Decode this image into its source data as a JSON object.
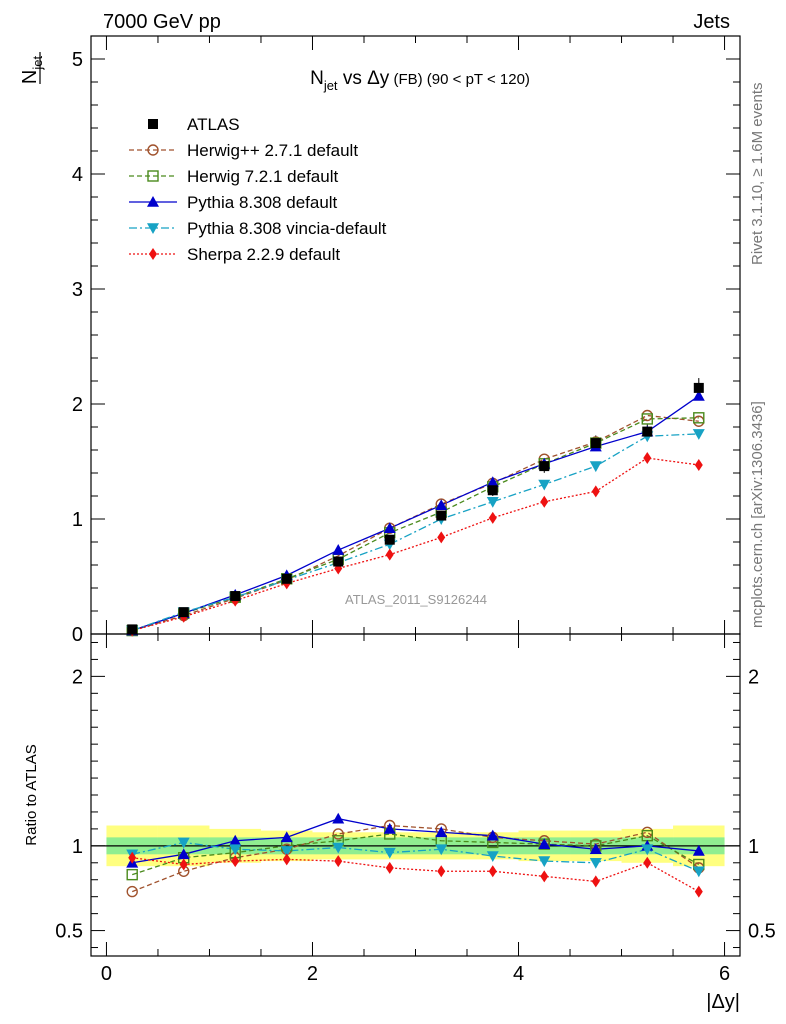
{
  "header": {
    "left": "7000 GeV pp",
    "right": "Jets"
  },
  "side_labels": {
    "rivet": "Rivet 3.1.10, ≥ 1.6M events",
    "mcplots": "mcplots.cern.ch [arXiv:1306.3436]"
  },
  "chart_data": {
    "type": "line",
    "title": {
      "main": "N",
      "main_sub": "jet",
      "mid": " vs Δy",
      "tag": " (FB) (90 < pT < 120)"
    },
    "ylabel": {
      "main": "N",
      "sub": "jet"
    },
    "xlabel": "|Δy|",
    "ratio_ylabel": "Ratio to ATLAS",
    "watermark": "ATLAS_2011_S9126244",
    "xlim": [
      -0.15,
      6.15
    ],
    "ylim": [
      0,
      5.2
    ],
    "ratio_ylim": [
      0.35,
      2.25
    ],
    "xticks": [
      0,
      2,
      4,
      6
    ],
    "xtick_labels": [
      "0",
      "2",
      "4",
      "6"
    ],
    "yticks": [
      0,
      1,
      2,
      3,
      4,
      5
    ],
    "ytick_labels": [
      "0",
      "1",
      "2",
      "3",
      "4",
      "5"
    ],
    "ratio_yticks": [
      0.5,
      1,
      2
    ],
    "ratio_ytick_labels": [
      "0.5",
      "1",
      "2"
    ],
    "x": [
      0.25,
      0.75,
      1.25,
      1.75,
      2.25,
      2.75,
      3.25,
      3.75,
      4.25,
      4.75,
      5.25,
      5.75
    ],
    "data": {
      "name": "ATLAS",
      "values": [
        0.04,
        0.19,
        0.33,
        0.48,
        0.63,
        0.82,
        1.03,
        1.25,
        1.46,
        1.66,
        1.76,
        2.14
      ],
      "band_inner": [
        0.05,
        0.05,
        0.05,
        0.05,
        0.05,
        0.05,
        0.05,
        0.05,
        0.05,
        0.05,
        0.05,
        0.05
      ],
      "band_outer": [
        0.12,
        0.12,
        0.1,
        0.09,
        0.08,
        0.08,
        0.08,
        0.08,
        0.09,
        0.09,
        0.1,
        0.12
      ]
    },
    "series": [
      {
        "name": "Herwig++ 2.7.1 default",
        "color": "#a0522d",
        "dash": "5,3",
        "marker": "circle-open",
        "values": [
          0.03,
          0.16,
          0.31,
          0.47,
          0.68,
          0.92,
          1.13,
          1.31,
          1.52,
          1.67,
          1.9,
          1.85
        ],
        "ratio": [
          0.73,
          0.85,
          0.93,
          0.98,
          1.07,
          1.12,
          1.1,
          1.05,
          1.03,
          1.01,
          1.08,
          0.87
        ]
      },
      {
        "name": "Herwig 7.2.1 default",
        "color": "#4a8a1c",
        "dash": "5,3",
        "marker": "square-open",
        "values": [
          0.03,
          0.18,
          0.32,
          0.48,
          0.65,
          0.88,
          1.06,
          1.28,
          1.48,
          1.66,
          1.87,
          1.88
        ],
        "ratio": [
          0.83,
          0.93,
          0.96,
          1.0,
          1.03,
          1.07,
          1.03,
          1.02,
          1.01,
          1.0,
          1.06,
          0.89
        ]
      },
      {
        "name": "Pythia 8.308 default",
        "color": "#0000cc",
        "dash": "",
        "marker": "triangle-up",
        "values": [
          0.03,
          0.18,
          0.34,
          0.51,
          0.73,
          0.92,
          1.12,
          1.32,
          1.48,
          1.63,
          1.76,
          2.07
        ],
        "ratio": [
          0.9,
          0.95,
          1.03,
          1.05,
          1.16,
          1.1,
          1.08,
          1.06,
          1.01,
          0.98,
          1.0,
          0.97
        ]
      },
      {
        "name": "Pythia 8.308 vincia-default",
        "color": "#17a2c4",
        "dash": "8,3,2,3",
        "marker": "triangle-down",
        "values": [
          0.03,
          0.19,
          0.32,
          0.47,
          0.62,
          0.78,
          1.0,
          1.15,
          1.3,
          1.46,
          1.72,
          1.74
        ],
        "ratio": [
          0.95,
          1.02,
          0.98,
          0.97,
          0.99,
          0.96,
          0.98,
          0.94,
          0.91,
          0.9,
          0.98,
          0.85
        ]
      },
      {
        "name": "Sherpa 2.2.9 default",
        "color": "#ee1111",
        "dash": "2,2",
        "marker": "diamond",
        "values": [
          0.03,
          0.15,
          0.29,
          0.44,
          0.57,
          0.69,
          0.84,
          1.01,
          1.15,
          1.24,
          1.53,
          1.47
        ],
        "ratio": [
          0.93,
          0.89,
          0.91,
          0.92,
          0.91,
          0.87,
          0.85,
          0.85,
          0.82,
          0.79,
          0.9,
          0.73
        ]
      }
    ],
    "legend_position": "top-left"
  }
}
